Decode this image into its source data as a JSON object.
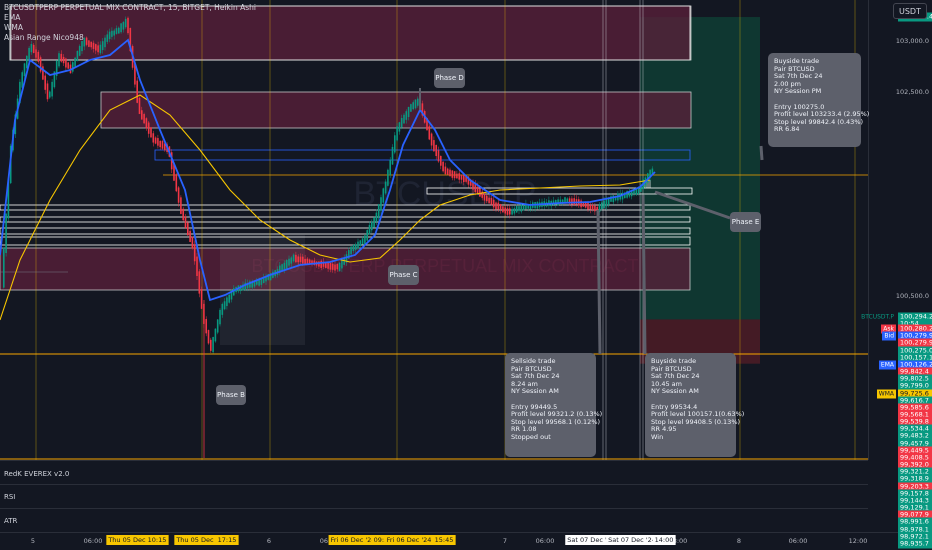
{
  "legend": {
    "symbol": "BTCUSDTPERP PERPETUAL MIX CONTRACT, 15, BITGET, Heikin Ashi",
    "lines": [
      "EMA",
      "WMA",
      "Asian Range Nico948"
    ]
  },
  "watermark": {
    "big": "BTCUSDTP",
    "small": "BTCUSDTPERP PERPETUAL MIX CONTRACT"
  },
  "currency_button": "USDT",
  "price_scale": {
    "ticks": [
      "103,000.0",
      "102,500.0",
      "100,500.0"
    ],
    "labels": [
      {
        "text": "103,233.4",
        "color": "#089981",
        "p": 103233.4
      },
      {
        "text": "100,294.2",
        "color": "#089981",
        "p": 100294.2
      },
      {
        "text": "10:54",
        "color": "#089981",
        "p": 100230
      },
      {
        "text": "100,280.2",
        "color": "#f23645",
        "p": 100180
      },
      {
        "text": "100,279.9",
        "color": "#2962ff",
        "p": 100110
      },
      {
        "text": "100,279.9",
        "color": "#f23645",
        "p": 100040
      },
      {
        "text": "100,275.0",
        "color": "#089981",
        "p": 99970
      },
      {
        "text": "100,157.1",
        "color": "#089981",
        "p": 99900
      },
      {
        "text": "100,126.2",
        "color": "#2962ff",
        "p": 99830
      },
      {
        "text": "99,842.4",
        "color": "#f23645",
        "p": 99760
      },
      {
        "text": "99,802.5",
        "color": "#089981",
        "p": 99690
      },
      {
        "text": "99,799.0",
        "color": "#089981",
        "p": 99620
      },
      {
        "text": "99,725.6",
        "color": "#f7c600",
        "p": 99550
      },
      {
        "text": "99,616.7",
        "color": "#089981",
        "p": 99480
      },
      {
        "text": "99,585.6",
        "color": "#f23645",
        "p": 99410
      },
      {
        "text": "99,568.1",
        "color": "#f23645",
        "p": 99340
      },
      {
        "text": "99,539.8",
        "color": "#f23645",
        "p": 99270
      },
      {
        "text": "99,534.4",
        "color": "#089981",
        "p": 99200
      },
      {
        "text": "99,483.2",
        "color": "#089981",
        "p": 99130
      },
      {
        "text": "99,457.9",
        "color": "#089981",
        "p": 99060
      },
      {
        "text": "99,449.5",
        "color": "#f23645",
        "p": 98990
      },
      {
        "text": "99,408.5",
        "color": "#f23645",
        "p": 98920
      },
      {
        "text": "99,392.0",
        "color": "#f23645",
        "p": 98850
      },
      {
        "text": "99,321.2",
        "color": "#089981",
        "p": 98780
      },
      {
        "text": "99,318.9",
        "color": "#089981",
        "p": 98710
      },
      {
        "text": "99,203.3",
        "color": "#f23645",
        "p": 98640
      },
      {
        "text": "99,157.8",
        "color": "#089981",
        "p": 98570
      },
      {
        "text": "99,144.3",
        "color": "#089981",
        "p": 98500
      },
      {
        "text": "99,129.1",
        "color": "#089981",
        "p": 98430
      },
      {
        "text": "99,077.9",
        "color": "#f23645",
        "p": 98360
      },
      {
        "text": "98,991.6",
        "color": "#089981",
        "p": 98290
      },
      {
        "text": "98,978.1",
        "color": "#089981",
        "p": 98220
      },
      {
        "text": "98,972.1",
        "color": "#089981",
        "p": 98150
      },
      {
        "text": "98,935.7",
        "color": "#089981",
        "p": 98080
      }
    ],
    "tags": [
      {
        "text": "BTCUSDT.P",
        "color": "#089981",
        "p": 100294.2
      },
      {
        "text": "Ask",
        "color": "#f23645",
        "p": 100180
      },
      {
        "text": "Bid",
        "color": "#2962ff",
        "p": 100110
      },
      {
        "text": "EMA",
        "color": "#2962ff",
        "p": 99830
      },
      {
        "text": "WMA",
        "color": "#f7c600",
        "p": 99550
      }
    ]
  },
  "callouts": {
    "buyside_top": [
      "Buyside trade",
      "Pair BTCUSD",
      "Sat 7th Dec 24",
      "2.00 pm",
      "NY Session PM",
      "",
      "Entry 100275.0",
      "Profit level 103233.4 (2.95%)",
      "Stop level 99842.4 (0.43%)",
      "RR 6.84"
    ],
    "sellside": [
      "Sellside trade",
      "Pair BTCUSD",
      "Sat 7th Dec 24",
      "8.24 am",
      "NY Session AM",
      "",
      "Entry 99449.5",
      "Profit level 99321.2 (0.13%)",
      "Stop level 99568.1 (0.12%)",
      "RR 1.08",
      "Stopped out"
    ],
    "buyside_bottom": [
      "Buyside trade",
      "Pair BTCUSD",
      "Sat 7th Dec 24",
      "10.45 am",
      "NY Session AM",
      "",
      "Entry 99534.4",
      "Profit level 100157.1(0.63%)",
      "Stop level 99408.5 (0.13%)",
      "RR 4.95",
      "Win"
    ]
  },
  "phases": {
    "a": "Phase B",
    "c": "Phase C",
    "d": "Phase D",
    "e": "Phase E"
  },
  "panels": {
    "evex": "RedK EVEREX v2.0",
    "rsi": "RSI",
    "atr": "ATR"
  },
  "time_axis": {
    "plain": [
      {
        "text": "5",
        "x": 33
      },
      {
        "text": "06:00",
        "x": 93
      },
      {
        "text": "6",
        "x": 269
      },
      {
        "text": "06:",
        "x": 325
      },
      {
        "text": "7",
        "x": 505
      },
      {
        "text": "06:00",
        "x": 545
      },
      {
        "text": "8:00",
        "x": 680
      },
      {
        "text": "8",
        "x": 739
      },
      {
        "text": "06:00",
        "x": 798
      },
      {
        "text": "12:00",
        "x": 858
      }
    ],
    "highlighted": [
      {
        "text": "Thu 05 Dec '24",
        "x": 133
      },
      {
        "text": "10:15",
        "x": 157
      },
      {
        "text": "Thu 05 Dec '24",
        "x": 201
      },
      {
        "text": "17:15",
        "x": 227
      },
      {
        "text": "Fri 06 Dec '24",
        "x": 353
      },
      {
        "text": "09:30",
        "x": 383
      },
      {
        "text": "Fri 06 Dec '24",
        "x": 409
      },
      {
        "text": "15:45",
        "x": 444
      }
    ],
    "white": [
      {
        "text": "Sat 07 Dec '",
        "x": 587
      },
      {
        "text": "Sat 07 Dec '24",
        "x": 632
      },
      {
        "text": "14:00",
        "x": 664
      }
    ]
  },
  "chart_data": {
    "type": "candlestick",
    "source": "BITGET",
    "interval": "15",
    "style": "Heikin Ashi",
    "ylim": [
      98900,
      103400
    ],
    "price_levels": {
      "buyside_profit": 103233.4,
      "buyside_entry": 100275.0,
      "buyside_stop": 99842.4,
      "sellside_entry": 99449.5,
      "sellside_profit": 99321.2,
      "sellside_stop": 99568.1,
      "buy2_entry": 99534.4,
      "buy2_profit": 100157.1,
      "buy2_stop": 99408.5,
      "last_price": 100294.2,
      "ema": 100126.2,
      "wma": 99725.6
    }
  },
  "colors": {
    "background": "#131722",
    "up": "#089981",
    "down": "#f23645",
    "ema": "#2962ff",
    "wma": "#f7c600",
    "zone": "#5b1f3a",
    "target_zone": "#0f3b33",
    "stop_zone": "#4a1c26"
  }
}
